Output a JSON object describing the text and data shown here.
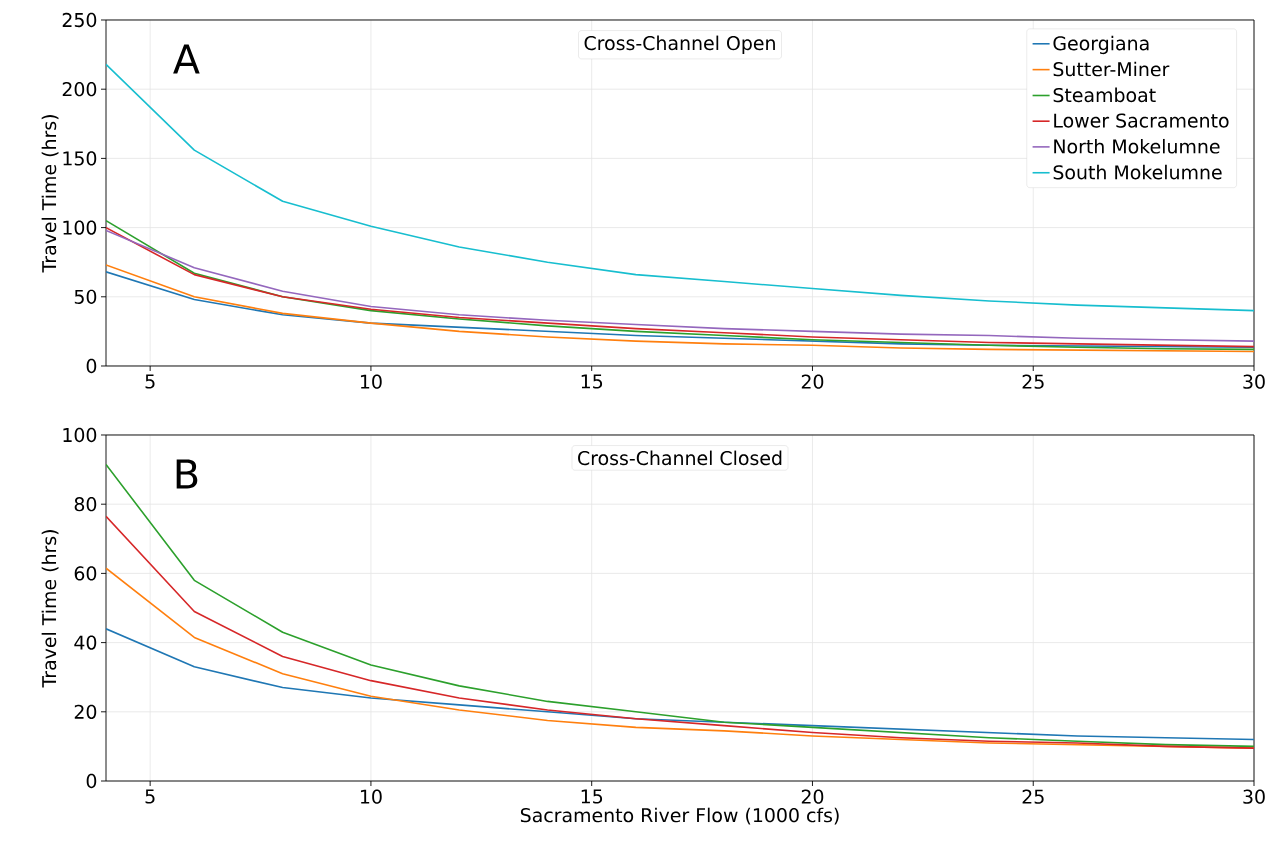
{
  "chart_data": [
    {
      "type": "line",
      "title": "Cross-Channel Open",
      "annotations": [
        "A"
      ],
      "ylabel": "Travel Time (hrs)",
      "x": [
        4,
        6,
        8,
        10,
        12,
        14,
        16,
        18,
        20,
        22,
        24,
        26,
        28,
        30
      ],
      "xlim": [
        4,
        30
      ],
      "xticks": [
        5,
        10,
        15,
        20,
        25,
        30
      ],
      "ylim": [
        0,
        250
      ],
      "yticks": [
        0,
        50,
        100,
        150,
        200,
        250
      ],
      "grid": true,
      "legend": "top right",
      "series": [
        {
          "name": "Georgiana",
          "color": "#1f77b4",
          "values": [
            68,
            48,
            37,
            31,
            28,
            25,
            22,
            20,
            18,
            16,
            15,
            14.5,
            14,
            13.5
          ]
        },
        {
          "name": "Sutter-Miner",
          "color": "#ff7f0e",
          "values": [
            73,
            50,
            38,
            31,
            25,
            21,
            18,
            16,
            15,
            13,
            12,
            11.5,
            11,
            10.5
          ]
        },
        {
          "name": "Steamboat",
          "color": "#2ca02c",
          "values": [
            105,
            67,
            50,
            40,
            34,
            29,
            25,
            22,
            19,
            17,
            15,
            13.5,
            12.5,
            12
          ]
        },
        {
          "name": "Lower Sacramento",
          "color": "#d62728",
          "values": [
            100,
            66,
            50,
            41,
            35,
            31,
            27,
            24,
            21,
            19,
            17,
            16,
            15,
            14
          ]
        },
        {
          "name": "North Mokelumne",
          "color": "#9467bd",
          "values": [
            98,
            71,
            54,
            43,
            37,
            33,
            30,
            27,
            25,
            23,
            22,
            20,
            19,
            18
          ]
        },
        {
          "name": "South Mokelumne",
          "color": "#17becf",
          "values": [
            218,
            156,
            119,
            101,
            86,
            75,
            66,
            61,
            56,
            51,
            47,
            44,
            42,
            40
          ]
        }
      ]
    },
    {
      "type": "line",
      "title": "Cross-Channel Closed",
      "annotations": [
        "B"
      ],
      "xlabel": "Sacramento River Flow (1000 cfs)",
      "ylabel": "Travel Time (hrs)",
      "x": [
        4,
        6,
        8,
        10,
        12,
        14,
        16,
        18,
        20,
        22,
        24,
        26,
        28,
        30
      ],
      "xlim": [
        4,
        30
      ],
      "xticks": [
        5,
        10,
        15,
        20,
        25,
        30
      ],
      "ylim": [
        0,
        100
      ],
      "yticks": [
        0,
        20,
        40,
        60,
        80,
        100
      ],
      "grid": true,
      "series": [
        {
          "color": "#1f77b4",
          "values": [
            44,
            33,
            27,
            24,
            22,
            20,
            18,
            17,
            16,
            15,
            14,
            13,
            12.5,
            12
          ]
        },
        {
          "color": "#ff7f0e",
          "values": [
            61.5,
            41.5,
            31,
            24.5,
            20.5,
            17.5,
            15.5,
            14.5,
            13,
            12,
            11,
            10.5,
            10,
            9.5
          ]
        },
        {
          "color": "#2ca02c",
          "values": [
            91.5,
            58,
            43,
            33.5,
            27.5,
            23,
            20,
            17,
            15.5,
            14,
            12.5,
            11.5,
            10.5,
            10
          ]
        },
        {
          "color": "#d62728",
          "values": [
            76.5,
            49,
            36,
            29,
            24,
            20.5,
            18,
            16,
            14,
            12.5,
            11.5,
            11,
            10,
            9.5
          ]
        }
      ]
    }
  ]
}
